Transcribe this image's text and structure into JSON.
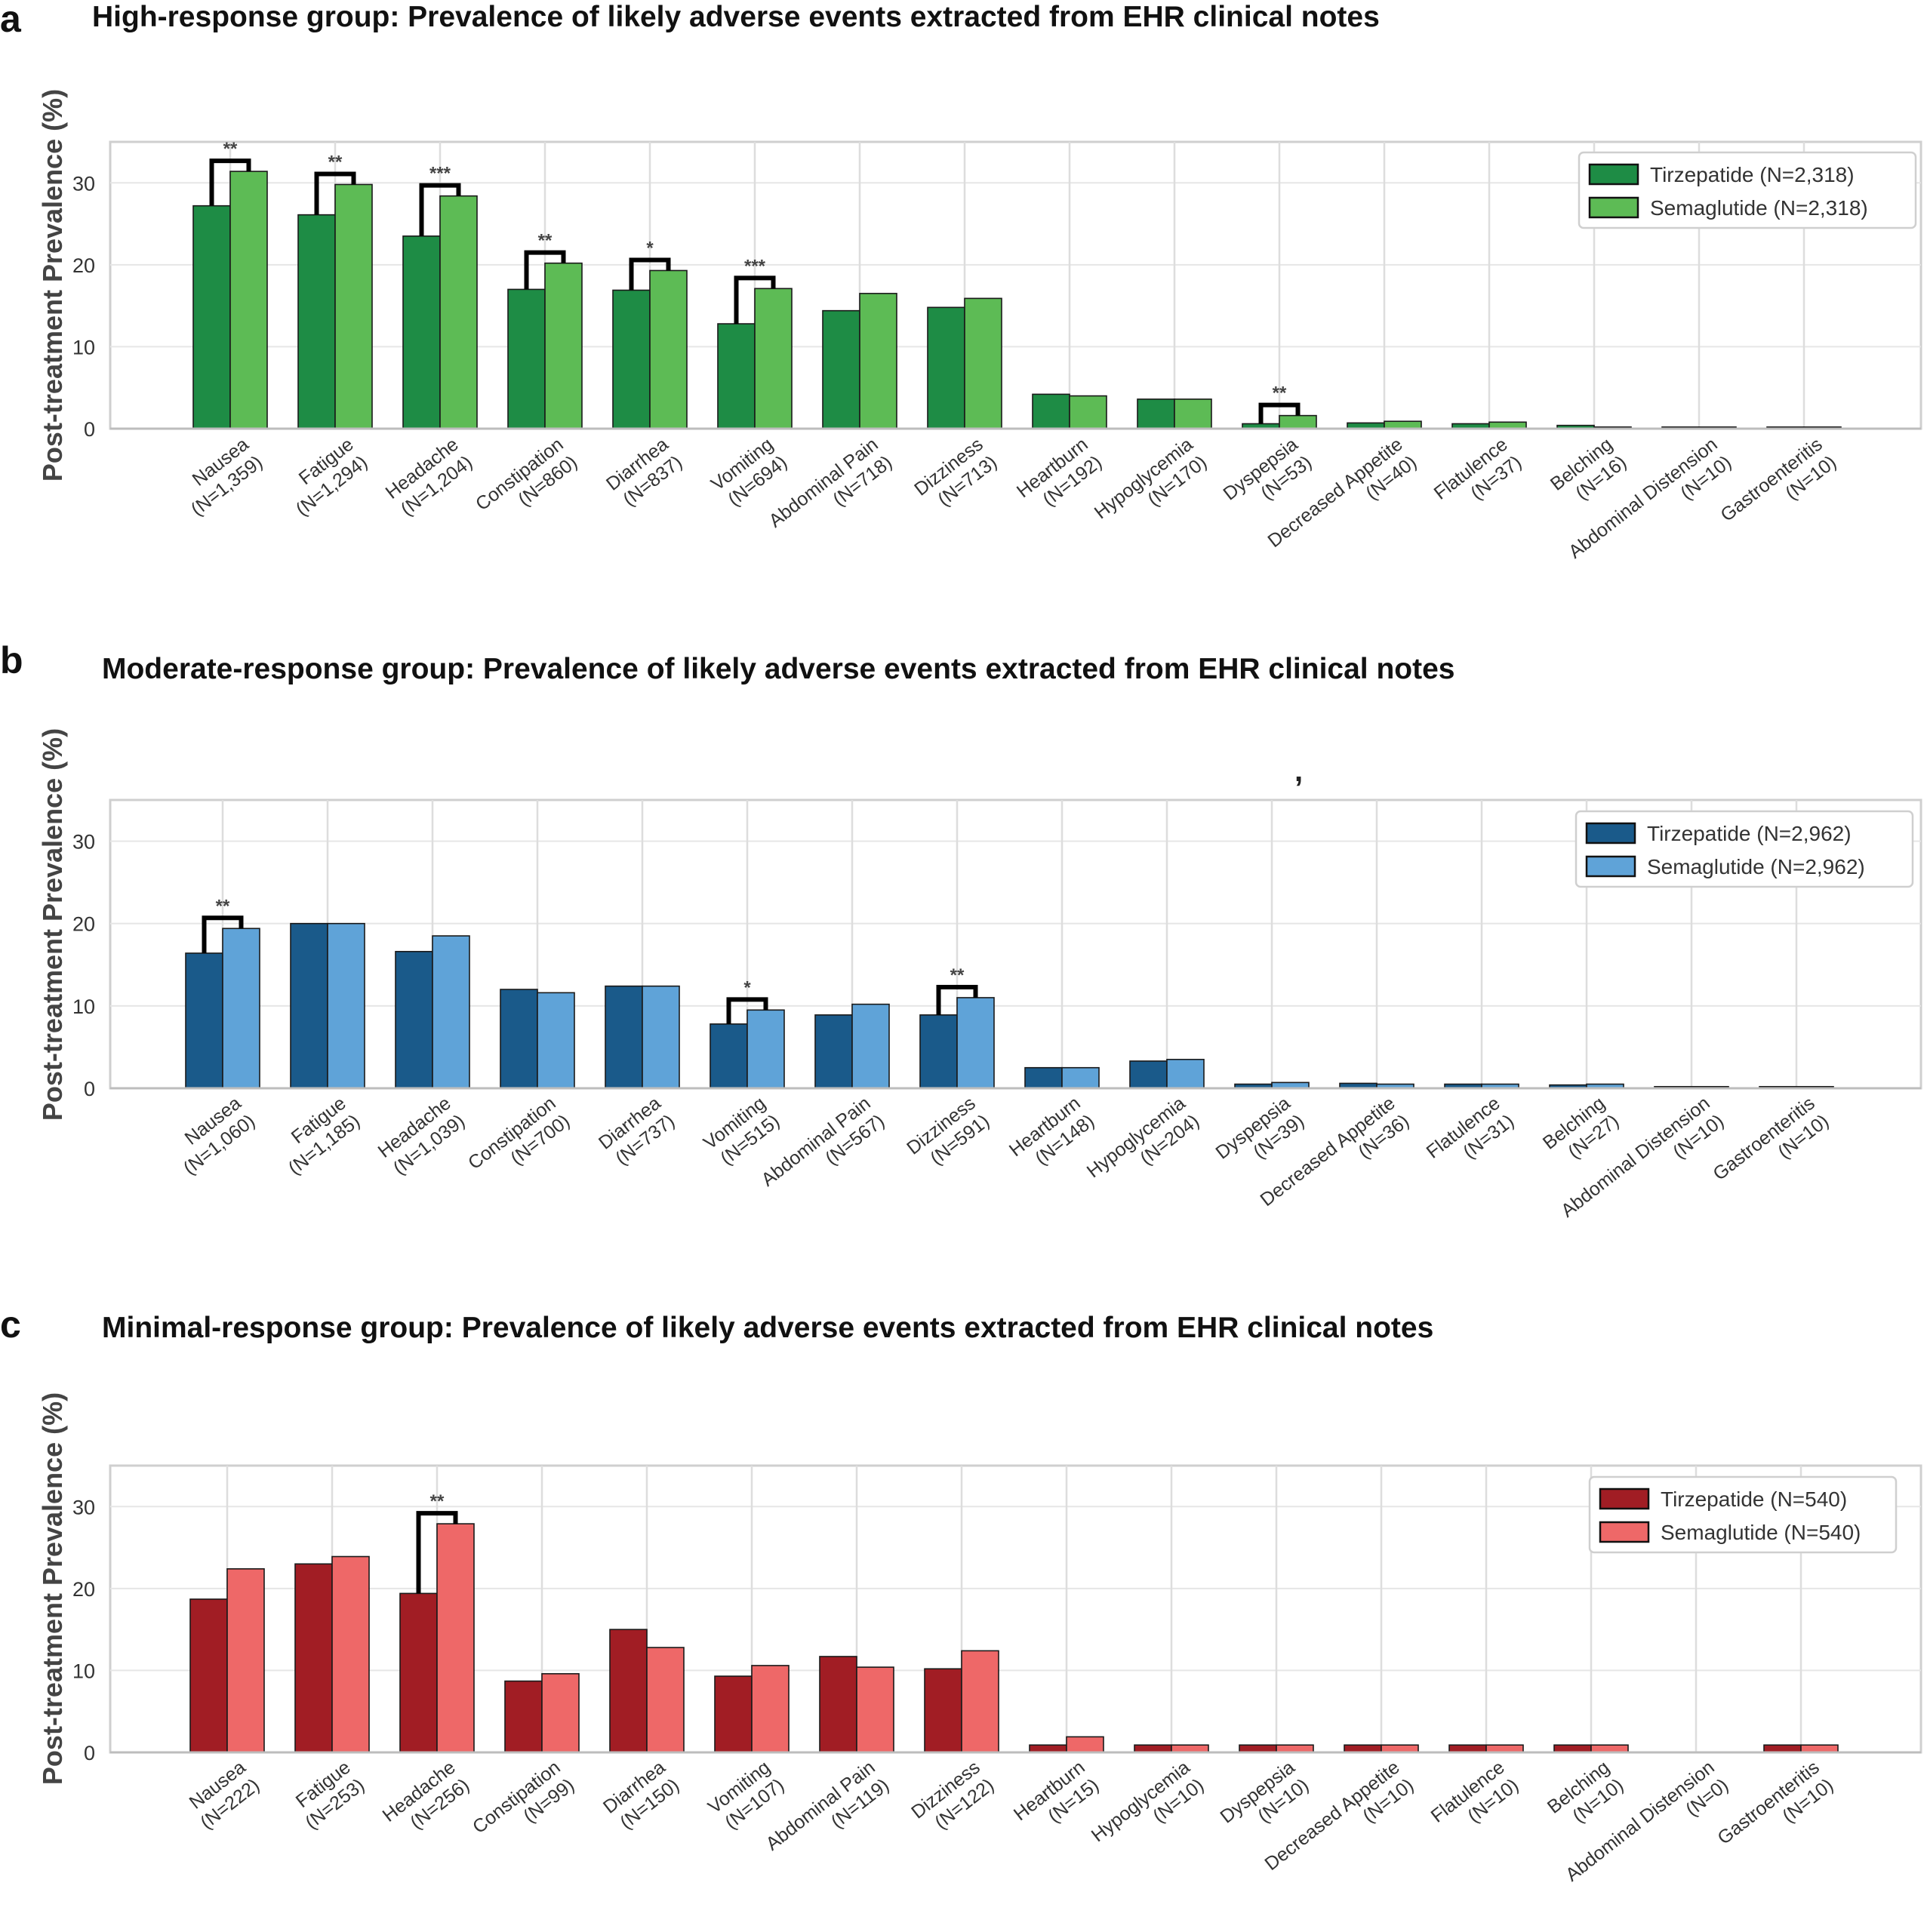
{
  "panels": [
    {
      "letter": "a",
      "title": "High-response group: Prevalence of likely adverse events extracted from EHR clinical notes"
    },
    {
      "letter": "b",
      "title": "Moderate-response group: Prevalence of likely adverse events extracted from EHR clinical notes"
    },
    {
      "letter": "c",
      "title": "Minimal-response group: Prevalence of likely adverse events extracted from EHR clinical notes"
    }
  ],
  "stray_mark": ",",
  "chart_data": [
    {
      "type": "bar",
      "title": "High-response group: Prevalence of likely adverse events extracted from EHR clinical notes",
      "ylabel": "Post-treatment Prevalence (%)",
      "ylim": [
        0,
        35
      ],
      "yticks": [
        0,
        10,
        20,
        30
      ],
      "grid": true,
      "legend_position": "top-right",
      "colors": {
        "Tirzepatide": "#1e8c45",
        "Semaglutide": "#5dbb55"
      },
      "categories": [
        "Nausea",
        "Fatigue",
        "Headache",
        "Constipation",
        "Diarrhea",
        "Vomiting",
        "Abdominal Pain",
        "Dizziness",
        "Heartburn",
        "Hypoglycemia",
        "Dyspepsia",
        "Decreased Appetite",
        "Flatulence",
        "Belching",
        "Abdominal Distension",
        "Gastroenteritis"
      ],
      "counts": [
        "(N=1,359)",
        "(N=1,294)",
        "(N=1,204)",
        "(N=860)",
        "(N=837)",
        "(N=694)",
        "(N=718)",
        "(N=713)",
        "(N=192)",
        "(N=170)",
        "(N=53)",
        "(N=40)",
        "(N=37)",
        "(N=16)",
        "(N=10)",
        "(N=10)"
      ],
      "series": [
        {
          "name": "Tirzepatide (N=2,318)",
          "values": [
            27.2,
            26.1,
            23.5,
            17.0,
            16.9,
            12.8,
            14.4,
            14.8,
            4.2,
            3.6,
            0.6,
            0.7,
            0.6,
            0.4,
            0.2,
            0.2
          ]
        },
        {
          "name": "Semaglutide (N=2,318)",
          "values": [
            31.4,
            29.8,
            28.4,
            20.2,
            19.3,
            17.1,
            16.5,
            15.9,
            4.0,
            3.6,
            1.6,
            0.9,
            0.8,
            0.2,
            0.2,
            0.2
          ]
        }
      ],
      "significance": [
        {
          "index": 0,
          "label": "**"
        },
        {
          "index": 1,
          "label": "**"
        },
        {
          "index": 2,
          "label": "***"
        },
        {
          "index": 3,
          "label": "**"
        },
        {
          "index": 4,
          "label": "*"
        },
        {
          "index": 5,
          "label": "***"
        },
        {
          "index": 10,
          "label": "**"
        }
      ]
    },
    {
      "type": "bar",
      "title": "Moderate-response group: Prevalence of likely adverse events extracted from EHR clinical notes",
      "ylabel": "Post-treatment Prevalence (%)",
      "ylim": [
        0,
        35
      ],
      "yticks": [
        0,
        10,
        20,
        30
      ],
      "grid": true,
      "legend_position": "top-right",
      "colors": {
        "Tirzepatide": "#1a5a8a",
        "Semaglutide": "#5fa3d8"
      },
      "categories": [
        "Nausea",
        "Fatigue",
        "Headache",
        "Constipation",
        "Diarrhea",
        "Vomiting",
        "Abdominal Pain",
        "Dizziness",
        "Heartburn",
        "Hypoglycemia",
        "Dyspepsia",
        "Decreased Appetite",
        "Flatulence",
        "Belching",
        "Abdominal Distension",
        "Gastroenteritis"
      ],
      "counts": [
        "(N=1,060)",
        "(N=1,185)",
        "(N=1,039)",
        "(N=700)",
        "(N=737)",
        "(N=515)",
        "(N=567)",
        "(N=591)",
        "(N=148)",
        "(N=204)",
        "(N=39)",
        "(N=36)",
        "(N=31)",
        "(N=27)",
        "(N=10)",
        "(N=10)"
      ],
      "series": [
        {
          "name": "Tirzepatide (N=2,962)",
          "values": [
            16.4,
            20.0,
            16.6,
            12.0,
            12.4,
            7.8,
            8.9,
            8.9,
            2.5,
            3.3,
            0.5,
            0.6,
            0.5,
            0.4,
            0.2,
            0.2
          ]
        },
        {
          "name": "Semaglutide (N=2,962)",
          "values": [
            19.4,
            20.0,
            18.5,
            11.6,
            12.4,
            9.5,
            10.2,
            11.0,
            2.5,
            3.5,
            0.7,
            0.5,
            0.5,
            0.5,
            0.2,
            0.2
          ]
        }
      ],
      "significance": [
        {
          "index": 0,
          "label": "**"
        },
        {
          "index": 5,
          "label": "*"
        },
        {
          "index": 7,
          "label": "**"
        }
      ]
    },
    {
      "type": "bar",
      "title": "Minimal-response group: Prevalence of likely adverse events extracted from EHR clinical notes",
      "ylabel": "Post-treatment Prevalence (%)",
      "ylim": [
        0,
        35
      ],
      "yticks": [
        0,
        10,
        20,
        30
      ],
      "grid": true,
      "legend_position": "top-right",
      "colors": {
        "Tirzepatide": "#a11d24",
        "Semaglutide": "#ee6868"
      },
      "categories": [
        "Nausea",
        "Fatigue",
        "Headache",
        "Constipation",
        "Diarrhea",
        "Vomiting",
        "Abdominal Pain",
        "Dizziness",
        "Heartburn",
        "Hypoglycemia",
        "Dyspepsia",
        "Decreased Appetite",
        "Flatulence",
        "Belching",
        "Abdominal Distension",
        "Gastroenteritis"
      ],
      "counts": [
        "(N=222)",
        "(N=253)",
        "(N=256)",
        "(N=99)",
        "(N=150)",
        "(N=107)",
        "(N=119)",
        "(N=122)",
        "(N=15)",
        "(N=10)",
        "(N=10)",
        "(N=10)",
        "(N=10)",
        "(N=10)",
        "(N=0)",
        "(N=10)"
      ],
      "series": [
        {
          "name": "Tirzepatide (N=540)",
          "values": [
            18.7,
            23.0,
            19.4,
            8.7,
            15.0,
            9.3,
            11.7,
            10.2,
            0.9,
            0.9,
            0.9,
            0.9,
            0.9,
            0.9,
            0.0,
            0.9
          ]
        },
        {
          "name": "Semaglutide (N=540)",
          "values": [
            22.4,
            23.9,
            27.9,
            9.6,
            12.8,
            10.6,
            10.4,
            12.4,
            1.9,
            0.9,
            0.9,
            0.9,
            0.9,
            0.9,
            0.0,
            0.9
          ]
        }
      ],
      "significance": [
        {
          "index": 2,
          "label": "**"
        }
      ]
    }
  ]
}
